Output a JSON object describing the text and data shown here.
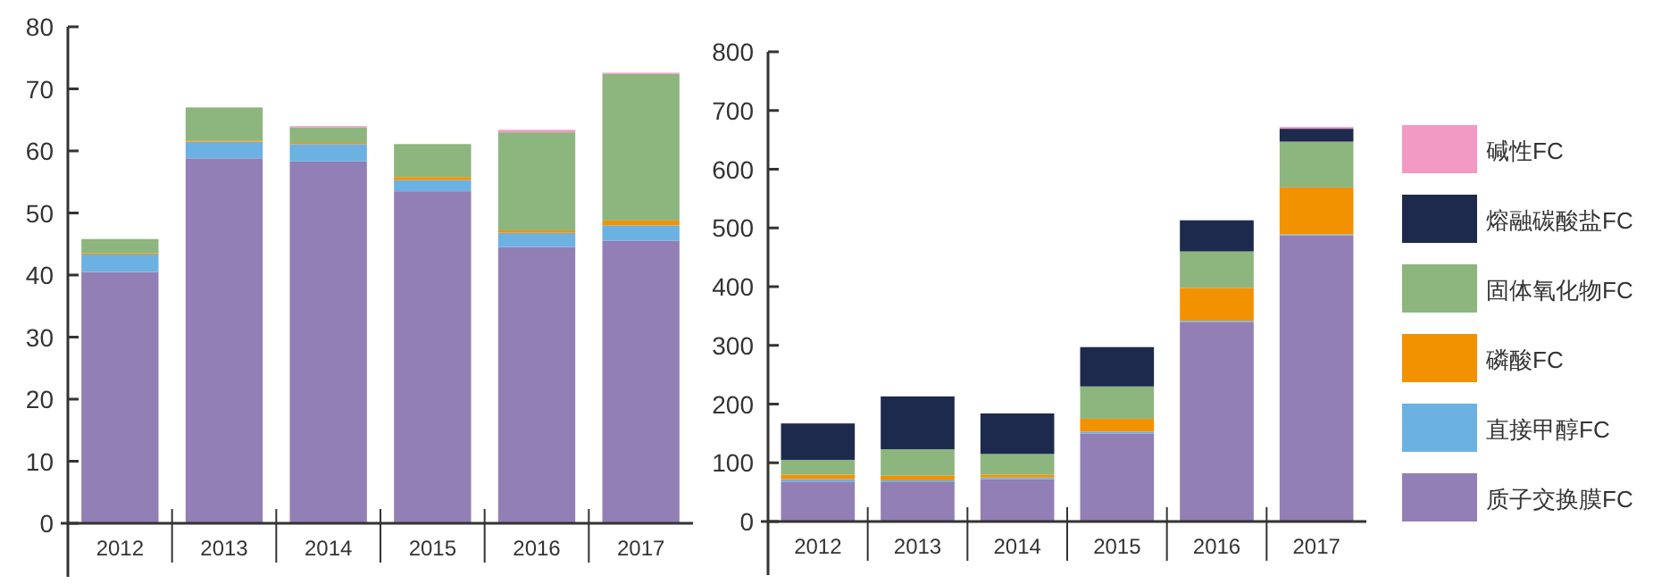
{
  "chart_data": [
    {
      "type": "bar",
      "stacked": true,
      "categories": [
        "2012",
        "2013",
        "2014",
        "2015",
        "2016",
        "2017"
      ],
      "ylim": [
        0,
        80
      ],
      "yticks": [
        0,
        10,
        20,
        30,
        40,
        50,
        60,
        70,
        80
      ],
      "legend": false,
      "series": [
        {
          "color": "#927fb5",
          "values": [
            40.5,
            58.8,
            58.3,
            53.5,
            44.5,
            45.5
          ]
        },
        {
          "color": "#6bb1e1",
          "values": [
            2.8,
            2.7,
            2.8,
            1.8,
            2.3,
            2.5
          ]
        },
        {
          "color": "#f39200",
          "values": [
            0.2,
            0.2,
            0.2,
            0.5,
            0.4,
            0.8
          ]
        },
        {
          "color": "#8db57e",
          "values": [
            2.3,
            5.3,
            2.5,
            5.3,
            15.8,
            23.6
          ]
        },
        {
          "color": "#1e2a4d",
          "values": [
            0,
            0,
            null,
            0,
            0,
            0
          ]
        },
        {
          "color": "#f29ac4",
          "values": [
            0,
            0,
            0.2,
            0,
            0.4,
            0.2
          ]
        }
      ]
    },
    {
      "type": "bar",
      "stacked": true,
      "categories": [
        "2012",
        "2013",
        "2014",
        "2015",
        "2016",
        "2017"
      ],
      "ylim": [
        0,
        800
      ],
      "yticks": [
        0,
        100,
        200,
        300,
        400,
        500,
        600,
        700,
        800
      ],
      "legend": "right",
      "series": [
        {
          "name": "质子交换膜FC",
          "color": "#927fb5",
          "values": [
            68,
            67,
            72,
            150,
            340,
            487
          ]
        },
        {
          "name": "直接甲醇FC",
          "color": "#6bb1e1",
          "values": [
            4,
            3,
            3,
            3,
            2,
            2
          ]
        },
        {
          "name": "磷酸FC",
          "color": "#f39200",
          "values": [
            8,
            8,
            5,
            22,
            56,
            80
          ]
        },
        {
          "name": "固体氧化物FC",
          "color": "#8db57e",
          "values": [
            25,
            45,
            35,
            55,
            62,
            78
          ]
        },
        {
          "name": "熔融碳酸盐FC",
          "color": "#1e2a4d",
          "values": [
            62,
            90,
            69,
            67,
            53,
            22
          ]
        },
        {
          "name": "碱性FC",
          "color": "#f29ac4",
          "values": [
            0,
            0,
            0,
            0,
            0,
            3
          ]
        }
      ]
    }
  ]
}
